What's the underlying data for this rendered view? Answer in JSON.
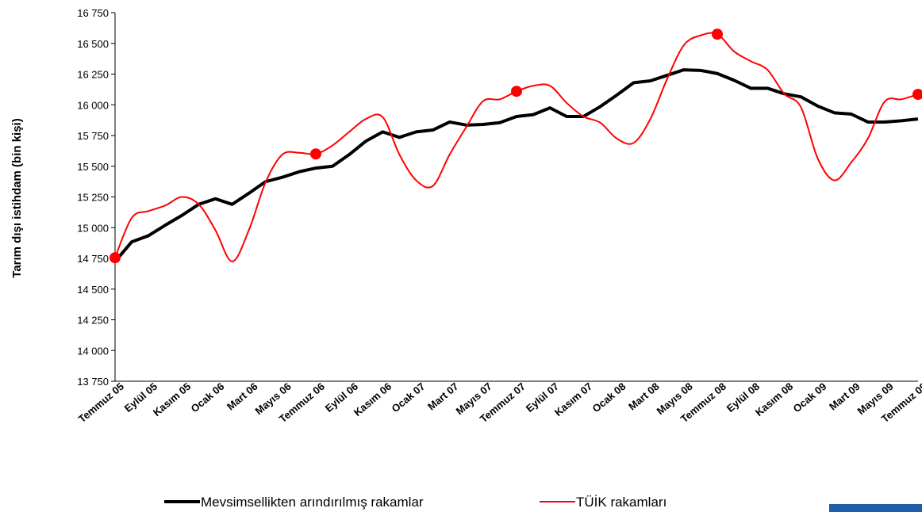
{
  "chart_data": {
    "type": "line",
    "y_label": "Tarım dışı istihdam (bin kişi)",
    "categories": [
      "Temmuz 05",
      null,
      "Eylül 05",
      null,
      "Kasım 05",
      null,
      "Ocak 06",
      null,
      "Mart 06",
      null,
      "Mayıs 06",
      null,
      "Temmuz 06",
      null,
      "Eylül 06",
      null,
      "Kasım 06",
      null,
      "Ocak 07",
      null,
      "Mart 07",
      null,
      "Mayıs 07",
      null,
      "Temmuz 07",
      null,
      "Eylül 07",
      null,
      "Kasım 07",
      null,
      "Ocak 08",
      null,
      "Mart 08",
      null,
      "Mayıs 08",
      null,
      "Temmuz 08",
      null,
      "Eylül 08",
      null,
      "Kasım 08",
      null,
      "Ocak 09",
      null,
      "Mart 09",
      null,
      "Mayıs 09",
      null,
      "Temmuz 09"
    ],
    "series": [
      {
        "name": "Mevsimsellikten arındırılmış rakamlar",
        "color": "#000000",
        "values": [
          14724,
          14885,
          14935,
          15020,
          15100,
          15190,
          15235,
          15190,
          15280,
          15375,
          15410,
          15455,
          15485,
          15500,
          15595,
          15705,
          15780,
          15735,
          15780,
          15795,
          15860,
          15835,
          15840,
          15855,
          15905,
          15920,
          15975,
          15905,
          15905,
          15985,
          16080,
          16180,
          16195,
          16240,
          16285,
          16280,
          16255,
          16200,
          16135,
          16135,
          16090,
          16065,
          15990,
          15935,
          15925,
          15860,
          15860,
          15870,
          15885
        ]
      },
      {
        "name": "TÜİK rakamları",
        "color": "#ff0000",
        "values": [
          14755,
          15080,
          15135,
          15180,
          15250,
          15190,
          14980,
          14725,
          14980,
          15370,
          15595,
          15610,
          15600,
          15670,
          15780,
          15885,
          15900,
          15595,
          15385,
          15340,
          15595,
          15820,
          16030,
          16045,
          16110,
          16155,
          16155,
          16015,
          15905,
          15855,
          15725,
          15690,
          15885,
          16210,
          16485,
          16565,
          16575,
          16435,
          16355,
          16285,
          16090,
          15980,
          15565,
          15385,
          15530,
          15725,
          16025,
          16045,
          16085
        ]
      }
    ],
    "ylim": [
      13750,
      16750
    ],
    "yticks": [
      {
        "value": 13750,
        "label": "13 750"
      },
      {
        "value": 14000,
        "label": "14 000"
      },
      {
        "value": 14250,
        "label": "14 250"
      },
      {
        "value": 14500,
        "label": "14 500"
      },
      {
        "value": 14750,
        "label": "14 750"
      },
      {
        "value": 15000,
        "label": "15 000"
      },
      {
        "value": 15250,
        "label": "15 250"
      },
      {
        "value": 15500,
        "label": "15 500"
      },
      {
        "value": 15750,
        "label": "15 750"
      },
      {
        "value": 16000,
        "label": "16 000"
      },
      {
        "value": 16250,
        "label": "16 250"
      },
      {
        "value": 16500,
        "label": "16 500"
      },
      {
        "value": 16750,
        "label": "16 750"
      }
    ],
    "grid": false
  }
}
